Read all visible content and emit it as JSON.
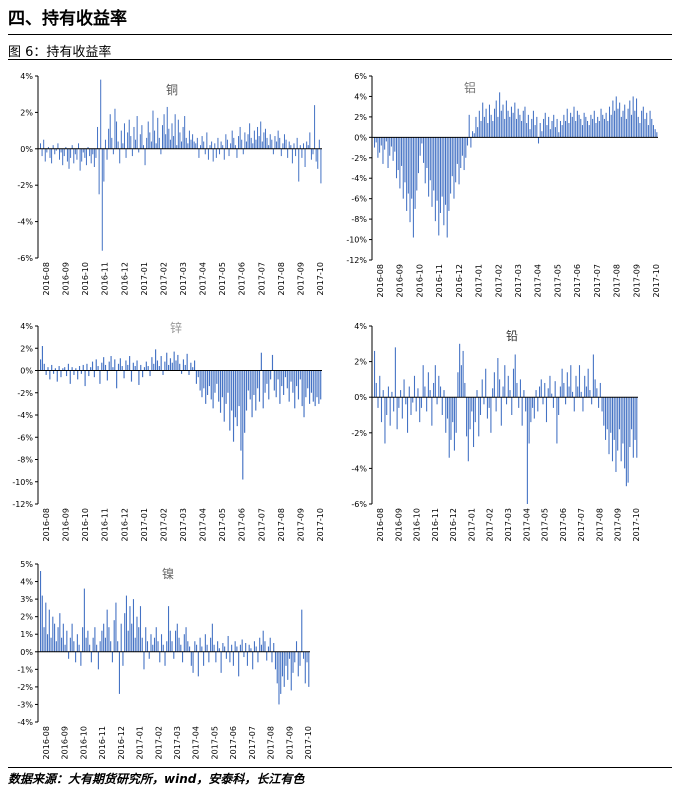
{
  "section_title": "四、持有收益率",
  "figure_label": "图 6：持有收益率",
  "source_note": "数据来源：大有期货研究所，wind，安泰科，长江有色",
  "colors": {
    "bar": "#4472C4",
    "axis": "#000000"
  },
  "chart_data": [
    {
      "type": "bar",
      "title": "铜",
      "ylim": [
        -6,
        4
      ],
      "yticks": [
        "4%",
        "2%",
        "0%",
        "-2%",
        "-4%",
        "-6%"
      ],
      "xticks": [
        "2016-08",
        "2016-09",
        "2016-10",
        "2016-11",
        "2016-12",
        "2017-01",
        "2017-02",
        "2017-03",
        "2017-04",
        "2017-05",
        "2017-06",
        "2017-07",
        "2017-08",
        "2017-09",
        "2017-10"
      ],
      "values": [
        0.3,
        -0.4,
        0.5,
        -0.7,
        -0.2,
        0.1,
        -0.5,
        -0.8,
        0.2,
        -0.3,
        -0.1,
        0.3,
        -0.6,
        -0.2,
        -0.9,
        -0.4,
        0.1,
        -0.7,
        -1.1,
        -0.5,
        0.2,
        -0.8,
        -0.3,
        -0.6,
        0.3,
        -1.2,
        -0.7,
        -0.2,
        -0.5,
        -0.9,
        0.1,
        -0.4,
        -0.8,
        -0.3,
        -1.0,
        -0.5,
        1.2,
        -2.5,
        3.8,
        -5.6,
        -1.8,
        0.5,
        -0.6,
        1.1,
        1.9,
        0.6,
        -0.3,
        2.2,
        1.5,
        0.4,
        -0.8,
        1.0,
        0.3,
        1.4,
        -0.5,
        0.9,
        1.6,
        0.7,
        -0.4,
        1.2,
        0.5,
        1.8,
        -0.2,
        0.8,
        1.3,
        0.2,
        -0.9,
        0.6,
        1.5,
        0.9,
        0.4,
        2.1,
        1.0,
        0.3,
        1.7,
        0.6,
        -0.3,
        1.3,
        1.9,
        0.8,
        2.3,
        1.1,
        0.5,
        1.4,
        0.7,
        1.9,
        0.2,
        1.6,
        0.9,
        0.4,
        1.2,
        1.8,
        0.6,
        0.3,
        1.0,
        0.5,
        0.8,
        0.4,
        0.3,
        0.6,
        -0.5,
        0.2,
        0.7,
        0.4,
        -0.3,
        0.9,
        -0.6,
        0.2,
        0.4,
        -0.7,
        0.3,
        -0.5,
        0.6,
        -0.3,
        0.4,
        0.2,
        -0.6,
        0.8,
        0.5,
        -0.4,
        0.3,
        1.0,
        0.6,
        0.2,
        -0.5,
        0.7,
        1.2,
        0.5,
        -0.3,
        0.9,
        0.4,
        0.8,
        1.4,
        0.6,
        0.3,
        1.0,
        0.5,
        1.2,
        0.7,
        1.5,
        0.4,
        0.9,
        1.1,
        0.6,
        0.2,
        0.8,
        0.5,
        -0.3,
        0.7,
        0.4,
        1.0,
        0.6,
        -0.4,
        0.3,
        0.8,
        0.5,
        -0.5,
        0.4,
        0.2,
        -0.8,
        0.3,
        -0.4,
        0.6,
        -1.8,
        0.2,
        -0.5,
        0.3,
        -1.0,
        0.4,
        0.2,
        0.9,
        -0.6,
        -0.3,
        2.4,
        -0.7,
        -1.1,
        0.5,
        -1.9
      ]
    },
    {
      "type": "bar",
      "title": "铝",
      "ylim": [
        -12,
        6
      ],
      "yticks": [
        "6%",
        "4%",
        "2%",
        "0%",
        "-2%",
        "-4%",
        "-6%",
        "-8%",
        "-10%",
        "-12%"
      ],
      "xticks": [
        "2016-08",
        "2016-09",
        "2016-10",
        "2016-11",
        "2016-12",
        "2017-01",
        "2017-02",
        "2017-03",
        "2017-04",
        "2017-05",
        "2017-06",
        "2017-07",
        "2017-08",
        "2017-09",
        "2017-10"
      ],
      "values": [
        -1.0,
        -0.5,
        -2.0,
        -1.5,
        -0.8,
        -2.6,
        -1.2,
        -0.4,
        -3.0,
        -1.8,
        -0.9,
        -2.3,
        -1.4,
        -4.0,
        -3.2,
        -5.0,
        -2.8,
        -6.0,
        -4.4,
        -7.2,
        -5.5,
        -8.3,
        -6.0,
        -9.8,
        -7.0,
        -5.2,
        -3.5,
        -1.8,
        -0.6,
        -2.5,
        -4.5,
        -3.0,
        -5.8,
        -4.2,
        -6.8,
        -5.2,
        -8.2,
        -6.2,
        -9.6,
        -7.4,
        -5.8,
        -8.6,
        -6.6,
        -9.8,
        -7.2,
        -5.5,
        -3.8,
        -6.0,
        -4.4,
        -2.6,
        -4.6,
        -3.0,
        -1.8,
        -3.2,
        -2.0,
        -0.8,
        2.2,
        -1.0,
        0.6,
        0.4,
        2.0,
        1.0,
        2.6,
        1.6,
        3.4,
        2.0,
        2.8,
        1.4,
        3.2,
        2.2,
        1.6,
        2.8,
        3.6,
        2.0,
        4.4,
        2.6,
        3.2,
        1.8,
        3.6,
        2.6,
        2.0,
        3.0,
        2.4,
        3.4,
        1.8,
        2.8,
        2.2,
        1.6,
        2.6,
        3.0,
        1.4,
        2.2,
        0.8,
        1.8,
        2.6,
        1.2,
        2.0,
        -0.6,
        1.4,
        0.6,
        1.8,
        2.4,
        1.2,
        2.0,
        0.8,
        1.6,
        2.2,
        1.0,
        1.8,
        0.5,
        1.6,
        1.2,
        2.2,
        1.6,
        2.8,
        1.4,
        2.4,
        2.0,
        3.0,
        1.6,
        2.6,
        2.2,
        1.8,
        1.2,
        2.4,
        2.0,
        1.6,
        1.2,
        2.2,
        1.8,
        2.6,
        1.4,
        2.0,
        1.6,
        2.8,
        2.2,
        1.8,
        2.4,
        1.6,
        3.0,
        2.2,
        3.6,
        2.6,
        4.0,
        2.8,
        3.4,
        2.0,
        2.6,
        3.2,
        1.8,
        2.8,
        3.6,
        2.2,
        4.0,
        2.6,
        3.8,
        2.0,
        1.4,
        2.6,
        3.0,
        1.8,
        2.4,
        1.2,
        2.6,
        1.8,
        1.2,
        0.8,
        0.5
      ]
    },
    {
      "type": "bar",
      "title": "锌",
      "ylim": [
        -12,
        4
      ],
      "yticks": [
        "4%",
        "2%",
        "0%",
        "-2%",
        "-4%",
        "-6%",
        "-8%",
        "-10%",
        "-12%"
      ],
      "xticks": [
        "2016-08",
        "2016-09",
        "2016-10",
        "2016-11",
        "2016-12",
        "2017-01",
        "2017-02",
        "2017-03",
        "2017-04",
        "2017-05",
        "2017-06",
        "2017-07",
        "2017-08",
        "2017-09",
        "2017-10"
      ],
      "values": [
        1.0,
        2.2,
        0.6,
        -0.4,
        0.3,
        -0.8,
        0.5,
        -0.3,
        0.2,
        -1.0,
        0.4,
        -0.6,
        0.2,
        0.3,
        -0.5,
        0.6,
        -1.2,
        0.3,
        -0.4,
        0.2,
        -0.8,
        0.4,
        -0.3,
        0.5,
        -1.4,
        0.6,
        -0.5,
        0.3,
        0.8,
        -0.6,
        1.0,
        0.4,
        -1.2,
        0.7,
        1.2,
        0.5,
        -0.9,
        0.8,
        1.3,
        0.3,
        1.0,
        -1.6,
        0.6,
        1.1,
        0.4,
        -0.7,
        0.9,
        0.5,
        1.3,
        -1.0,
        0.7,
        0.4,
        0.9,
        -1.3,
        0.5,
        -0.6,
        0.3,
        0.8,
        0.4,
        -0.5,
        1.2,
        0.6,
        1.9,
        0.9,
        0.4,
        1.3,
        -0.4,
        0.8,
        1.6,
        0.5,
        1.1,
        0.7,
        1.7,
        0.9,
        1.4,
        0.6,
        -0.3,
        1.0,
        0.5,
        1.5,
        -0.4,
        0.7,
        0.3,
        0.9,
        -1.2,
        -0.6,
        -1.8,
        -2.4,
        -1.6,
        -3.0,
        -2.2,
        -1.4,
        -2.6,
        -3.4,
        -2.0,
        -1.2,
        -2.8,
        -3.8,
        -2.4,
        -4.6,
        -3.0,
        -2.0,
        -5.4,
        -3.6,
        -6.4,
        -4.2,
        -5.0,
        -3.2,
        -7.2,
        -9.8,
        -5.6,
        -3.6,
        -1.8,
        -2.6,
        -4.2,
        -2.2,
        -3.6,
        -1.6,
        -2.8,
        1.6,
        -3.4,
        -2.0,
        -1.2,
        -2.6,
        -0.8,
        1.4,
        -1.8,
        -2.4,
        -0.8,
        -3.0,
        -1.4,
        -2.2,
        -0.6,
        -1.6,
        -2.8,
        -1.0,
        -2.0,
        -3.4,
        -1.4,
        -2.6,
        -0.8,
        -3.2,
        -4.2,
        -2.4,
        -1.6,
        -3.0,
        -2.0,
        -2.8,
        -3.2,
        -2.4,
        -3.0,
        -2.6
      ]
    },
    {
      "type": "bar",
      "title": "铅",
      "ylim": [
        -6,
        4
      ],
      "yticks": [
        "4%",
        "2%",
        "0%",
        "-2%",
        "-4%",
        "-6%"
      ],
      "xticks": [
        "2016-08",
        "2016-09",
        "2016-10",
        "2016-11",
        "2016-12",
        "2017-01",
        "2017-02",
        "2017-03",
        "2017-04",
        "2017-05",
        "2017-06",
        "2017-07",
        "2017-08",
        "2017-09",
        "2017-10"
      ],
      "values": [
        2.6,
        0.8,
        -0.6,
        1.2,
        -1.4,
        0.4,
        -2.6,
        -1.0,
        0.6,
        -1.6,
        0.3,
        -0.8,
        2.8,
        -1.8,
        -0.6,
        0.4,
        -1.2,
        1.0,
        -0.4,
        -2.0,
        0.6,
        -1.0,
        -0.3,
        1.2,
        -0.8,
        0.5,
        -1.4,
        -0.6,
        1.8,
        0.6,
        -0.8,
        1.4,
        0.4,
        -1.6,
        0.8,
        1.8,
        -0.4,
        1.2,
        0.6,
        -1.0,
        0.4,
        -2.0,
        -1.2,
        -3.4,
        -2.4,
        -1.4,
        -3.0,
        -2.0,
        1.4,
        3.0,
        1.8,
        2.6,
        0.8,
        -2.2,
        -3.6,
        -1.8,
        -0.8,
        -2.8,
        -1.4,
        0.4,
        -2.2,
        -1.0,
        1.0,
        -0.4,
        1.6,
        -1.2,
        -0.6,
        -2.0,
        0.5,
        1.4,
        -0.8,
        2.2,
        1.0,
        -1.6,
        0.6,
        1.8,
        -0.4,
        1.2,
        0.4,
        -1.0,
        1.6,
        2.4,
        0.8,
        -0.6,
        1.0,
        -1.6,
        0.4,
        -0.8,
        -6.0,
        -2.6,
        -1.4,
        -0.6,
        -1.2,
        0.4,
        -0.8,
        0.6,
        1.0,
        -0.4,
        0.8,
        -1.4,
        0.5,
        1.2,
        0.2,
        -0.6,
        0.9,
        -2.6,
        -1.0,
        0.6,
        1.6,
        0.8,
        -0.4,
        1.4,
        0.6,
        1.8,
        0.3,
        -0.8,
        1.2,
        0.6,
        1.8,
        0.3,
        -0.8,
        1.2,
        0.6,
        1.6,
        0.4,
        -0.4,
        2.4,
        1.0,
        0.5,
        -0.6,
        0.8,
        -0.8,
        -1.6,
        -2.4,
        -1.8,
        -3.2,
        -2.0,
        -3.6,
        -2.4,
        -4.2,
        -3.0,
        -1.8,
        -3.6,
        -2.6,
        -4.0,
        -5.0,
        -4.8,
        -2.8,
        -1.8,
        -3.4,
        -2.4,
        -3.4
      ]
    },
    {
      "type": "bar",
      "title": "镍",
      "ylim": [
        -4,
        5
      ],
      "yticks": [
        "5%",
        "4%",
        "3%",
        "2%",
        "1%",
        "0%",
        "-1%",
        "-2%",
        "-3%",
        "-4%"
      ],
      "xticks": [
        "2016-08",
        "2016-09",
        "2016-10",
        "2016-11",
        "2016-12",
        "2017-01",
        "2017-02",
        "2017-03",
        "2017-04",
        "2017-05",
        "2017-06",
        "2017-07",
        "2017-08",
        "2017-09",
        "2017-10"
      ],
      "values": [
        4.6,
        3.2,
        1.4,
        2.8,
        1.0,
        2.4,
        0.8,
        2.0,
        1.6,
        0.6,
        1.4,
        2.2,
        0.8,
        1.6,
        0.4,
        1.2,
        -0.4,
        0.8,
        1.6,
        0.6,
        -0.6,
        1.0,
        0.4,
        -0.8,
        1.4,
        3.6,
        0.8,
        1.2,
        0.4,
        -0.6,
        0.8,
        1.4,
        0.4,
        -1.0,
        0.6,
        1.2,
        1.6,
        0.8,
        2.4,
        1.4,
        0.6,
        -0.6,
        1.8,
        2.8,
        0.6,
        -2.4,
        1.6,
        -0.8,
        2.2,
        3.2,
        1.2,
        2.6,
        1.6,
        3.0,
        0.8,
        2.0,
        1.4,
        2.6,
        0.8,
        -1.0,
        1.4,
        0.6,
        -0.4,
        1.0,
        0.4,
        0.8,
        1.4,
        0.6,
        -0.6,
        1.0,
        0.4,
        -0.8,
        0.6,
        2.6,
        1.2,
        0.6,
        -0.4,
        1.2,
        1.6,
        0.8,
        0.4,
        -0.6,
        1.0,
        1.4,
        0.6,
        0.3,
        -0.8,
        -1.2,
        0.6,
        0.4,
        -1.4,
        0.8,
        0.3,
        -0.8,
        1.0,
        0.4,
        -0.6,
        0.8,
        1.6,
        0.4,
        -0.6,
        0.6,
        0.2,
        -1.2,
        0.5,
        0.3,
        -0.4,
        0.9,
        -0.6,
        0.4,
        -0.8,
        0.6,
        0.3,
        -1.4,
        0.4,
        0.7,
        -0.3,
        0.5,
        -0.8,
        0.4,
        0.2,
        -1.0,
        0.6,
        0.3,
        -0.6,
        0.8,
        0.4,
        1.2,
        0.6,
        -0.5,
        0.3,
        0.8,
        -0.6,
        0.5,
        -1.0,
        -1.8,
        -3.0,
        -2.4,
        -1.4,
        -2.0,
        -0.8,
        -1.6,
        -0.4,
        -2.2,
        -1.2,
        -0.6,
        0.6,
        -1.4,
        -0.8,
        2.4,
        -0.4,
        -1.8,
        -0.6,
        -2.0
      ]
    }
  ]
}
